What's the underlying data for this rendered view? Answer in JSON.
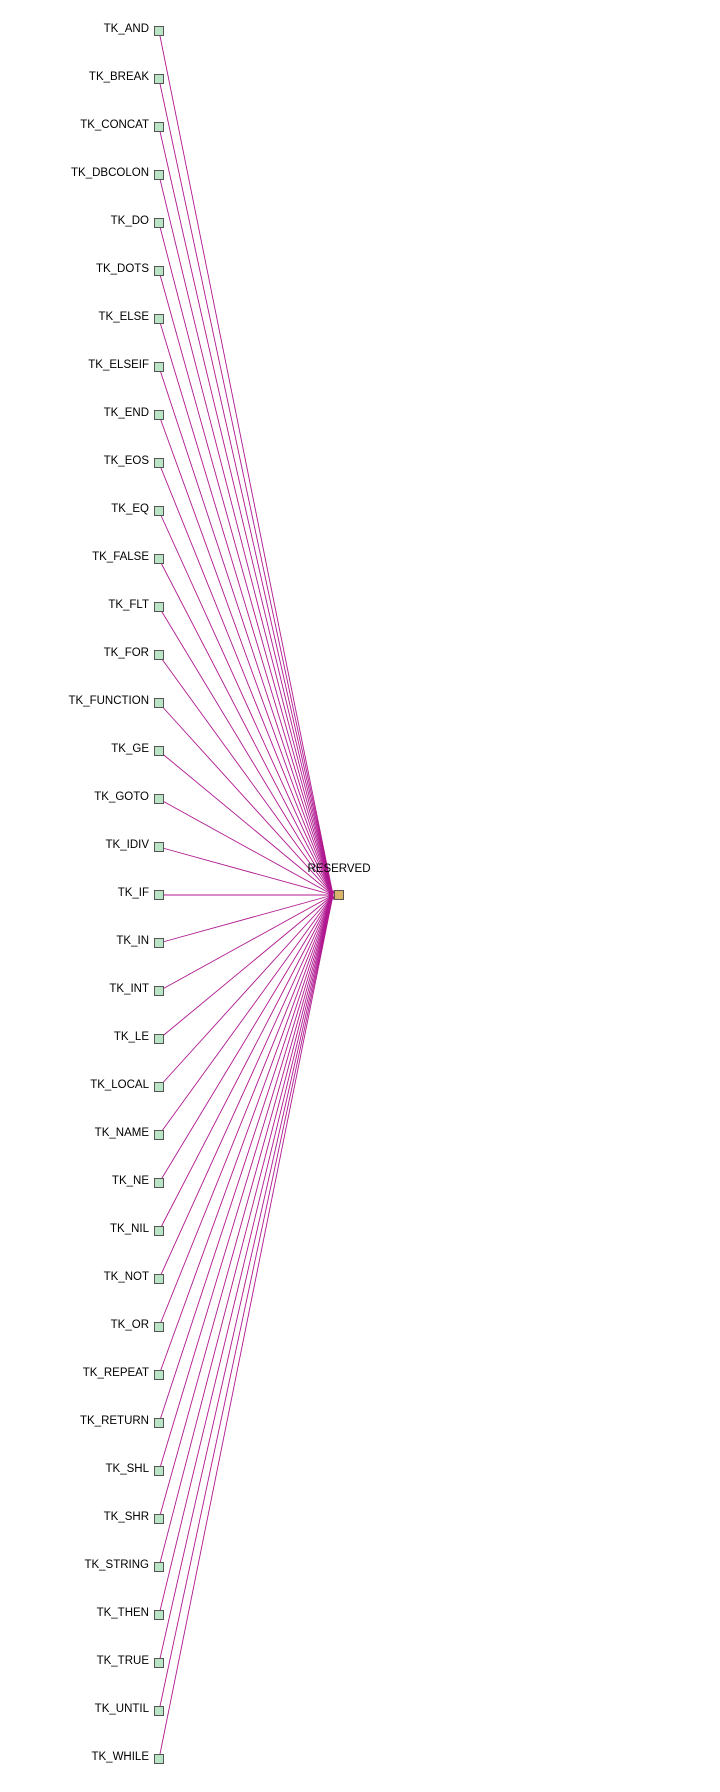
{
  "diagram": {
    "hub": {
      "label": "RESERVED",
      "color": "#d9b36b"
    },
    "leaf_color": "#b9e4c6",
    "edge_color": "#b0178f",
    "nodes": [
      "TK_AND",
      "TK_BREAK",
      "TK_CONCAT",
      "TK_DBCOLON",
      "TK_DO",
      "TK_DOTS",
      "TK_ELSE",
      "TK_ELSEIF",
      "TK_END",
      "TK_EOS",
      "TK_EQ",
      "TK_FALSE",
      "TK_FLT",
      "TK_FOR",
      "TK_FUNCTION",
      "TK_GE",
      "TK_GOTO",
      "TK_IDIV",
      "TK_IF",
      "TK_IN",
      "TK_INT",
      "TK_LE",
      "TK_LOCAL",
      "TK_NAME",
      "TK_NE",
      "TK_NIL",
      "TK_NOT",
      "TK_OR",
      "TK_REPEAT",
      "TK_RETURN",
      "TK_SHL",
      "TK_SHR",
      "TK_STRING",
      "TK_THEN",
      "TK_TRUE",
      "TK_UNTIL",
      "TK_WHILE"
    ]
  }
}
